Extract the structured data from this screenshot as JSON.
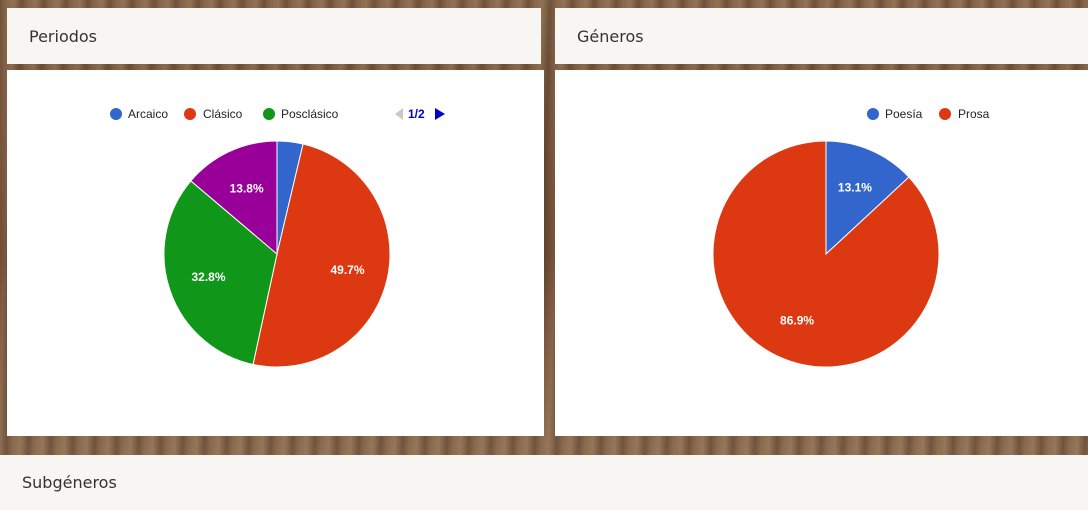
{
  "panels": {
    "periodos_title": "Periodos",
    "generos_title": "Géneros",
    "subgeneros_title": "Subgéneros"
  },
  "chart_data": [
    {
      "type": "pie",
      "title": "Periodos",
      "legend_position": "top",
      "legend_page": "1/2",
      "labels": [
        "Arcaico",
        "Clásico",
        "Posclásico",
        ""
      ],
      "values": [
        3.7,
        49.7,
        32.8,
        13.8
      ],
      "slice_labels": [
        "",
        "49.7%",
        "32.8%",
        "13.8%"
      ],
      "colors": [
        "#3366cc",
        "#dc3912",
        "#109618",
        "#990099"
      ]
    },
    {
      "type": "pie",
      "title": "Géneros",
      "legend_position": "top",
      "labels": [
        "Poesía",
        "Prosa"
      ],
      "values": [
        13.1,
        86.9
      ],
      "slice_labels": [
        "13.1%",
        "86.9%"
      ],
      "colors": [
        "#3366cc",
        "#dc3912"
      ]
    }
  ]
}
